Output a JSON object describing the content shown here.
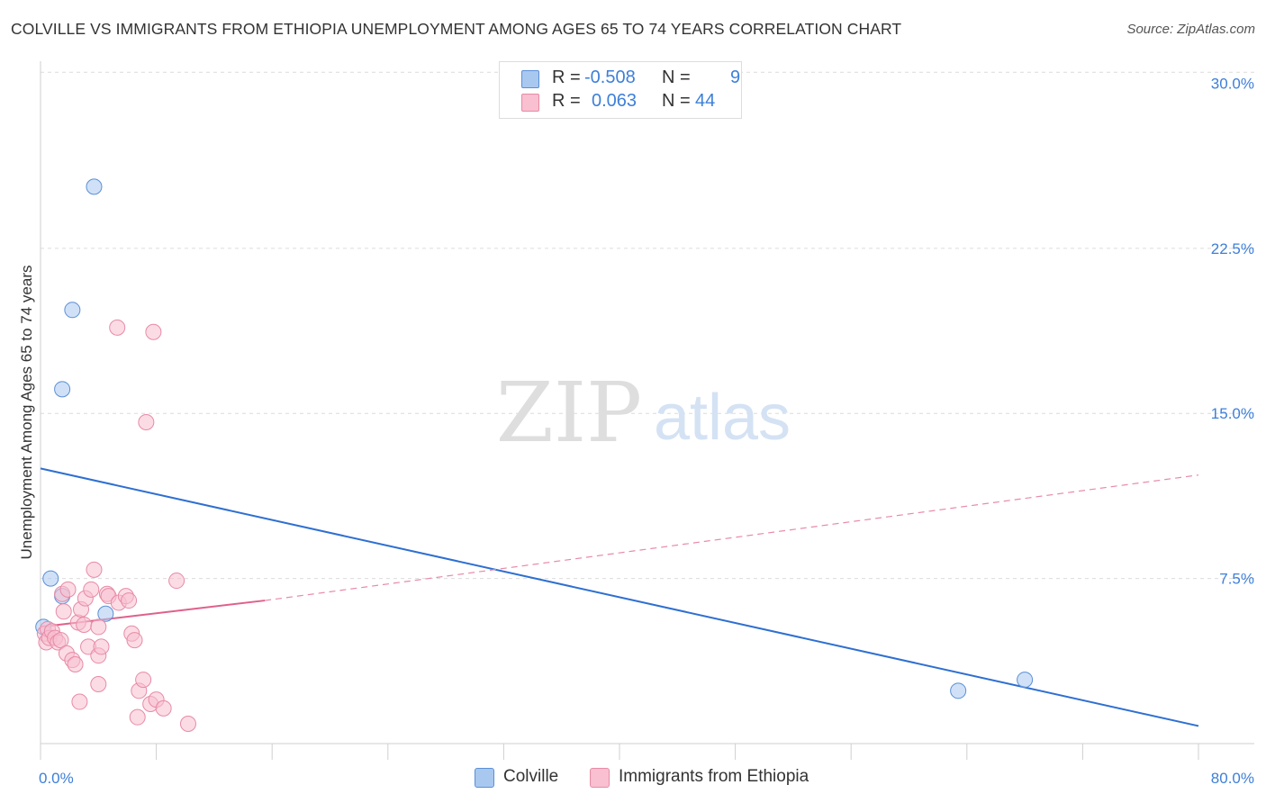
{
  "title": "COLVILLE VS IMMIGRANTS FROM ETHIOPIA UNEMPLOYMENT AMONG AGES 65 TO 74 YEARS CORRELATION CHART",
  "source": "Source: ZipAtlas.com",
  "watermark": {
    "zip": "ZIP",
    "atlas": "atlas"
  },
  "legend": {
    "rows": [
      {
        "r_label": "R =",
        "r_value": "-0.508",
        "n_label": "N =",
        "n_value": "9",
        "swatch": "#a9c8f0",
        "border": "#5a8fd6"
      },
      {
        "r_label": "R =",
        "r_value": "0.063",
        "n_label": "N =",
        "n_value": "44",
        "swatch": "#f8c0d0",
        "border": "#e88aa6"
      }
    ]
  },
  "bottom_legend": {
    "items": [
      {
        "label": "Colville",
        "swatch": "#a9c8f0",
        "border": "#5a8fd6"
      },
      {
        "label": "Immigrants from Ethiopia",
        "swatch": "#f8c0d0",
        "border": "#e88aa6"
      }
    ]
  },
  "chart_data": {
    "type": "scatter",
    "title": "COLVILLE VS IMMIGRANTS FROM ETHIOPIA UNEMPLOYMENT AMONG AGES 65 TO 74 YEARS CORRELATION CHART",
    "xlabel": "",
    "ylabel": "Unemployment Among Ages 65 to 74 years",
    "xlim": [
      0,
      80
    ],
    "ylim": [
      0,
      31
    ],
    "x_tick_labels": [
      {
        "value": 0,
        "label": "0.0%"
      },
      {
        "value": 80,
        "label": "80.0%"
      }
    ],
    "y_tick_labels": [
      {
        "value": 7.5,
        "label": "7.5%"
      },
      {
        "value": 15,
        "label": "15.0%"
      },
      {
        "value": 22.5,
        "label": "22.5%"
      },
      {
        "value": 30,
        "label": "30.0%"
      }
    ],
    "y_grid": [
      7.5,
      15,
      22.5,
      30.5
    ],
    "x_ticks": [
      0,
      8,
      16,
      24,
      32,
      40,
      48,
      56,
      64,
      72,
      80
    ],
    "series": [
      {
        "name": "Colville",
        "color": "#a9c8f0",
        "edge": "#5a8fd6",
        "points": [
          [
            0.2,
            5.3
          ],
          [
            0.7,
            7.5
          ],
          [
            1.5,
            6.7
          ],
          [
            1.5,
            16.1
          ],
          [
            2.2,
            19.7
          ],
          [
            3.7,
            25.3
          ],
          [
            4.5,
            5.9
          ],
          [
            63.4,
            2.4
          ],
          [
            68.0,
            2.9
          ]
        ],
        "trend": {
          "x": [
            0,
            80
          ],
          "y": [
            12.5,
            0.8
          ],
          "style": "solid",
          "color": "#2e6fd0"
        }
      },
      {
        "name": "Immigrants from Ethiopia",
        "color": "#f8c0d0",
        "edge": "#e88aa6",
        "points": [
          [
            0.3,
            5.0
          ],
          [
            0.4,
            4.6
          ],
          [
            0.5,
            5.2
          ],
          [
            0.6,
            4.8
          ],
          [
            0.8,
            5.1
          ],
          [
            1.0,
            4.8
          ],
          [
            1.2,
            4.6
          ],
          [
            1.4,
            4.7
          ],
          [
            1.5,
            6.8
          ],
          [
            1.6,
            6.0
          ],
          [
            1.8,
            4.1
          ],
          [
            1.9,
            7.0
          ],
          [
            2.2,
            3.8
          ],
          [
            2.4,
            3.6
          ],
          [
            2.6,
            5.5
          ],
          [
            2.7,
            1.9
          ],
          [
            2.8,
            6.1
          ],
          [
            3.0,
            5.4
          ],
          [
            3.1,
            6.6
          ],
          [
            3.3,
            4.4
          ],
          [
            3.5,
            7.0
          ],
          [
            3.7,
            7.9
          ],
          [
            4.0,
            5.3
          ],
          [
            4.0,
            4.0
          ],
          [
            4.0,
            2.7
          ],
          [
            4.2,
            4.4
          ],
          [
            4.6,
            6.8
          ],
          [
            4.7,
            6.7
          ],
          [
            5.4,
            6.4
          ],
          [
            5.9,
            6.7
          ],
          [
            6.1,
            6.5
          ],
          [
            6.3,
            5.0
          ],
          [
            6.5,
            4.7
          ],
          [
            6.7,
            1.2
          ],
          [
            6.8,
            2.4
          ],
          [
            7.1,
            2.9
          ],
          [
            7.3,
            14.6
          ],
          [
            7.6,
            1.8
          ],
          [
            7.8,
            18.7
          ],
          [
            8.0,
            2.0
          ],
          [
            8.5,
            1.6
          ],
          [
            9.4,
            7.4
          ],
          [
            10.2,
            0.9
          ],
          [
            5.3,
            18.9
          ]
        ],
        "trend": {
          "x": [
            0,
            15.5
          ],
          "y": [
            5.3,
            6.5
          ],
          "style": "solid",
          "color": "#e0608a"
        },
        "trend_extension": {
          "x": [
            15.5,
            80
          ],
          "y": [
            6.5,
            12.2
          ],
          "style": "dashed",
          "color": "#e88aa6"
        }
      }
    ],
    "legend_position": "top-center"
  }
}
